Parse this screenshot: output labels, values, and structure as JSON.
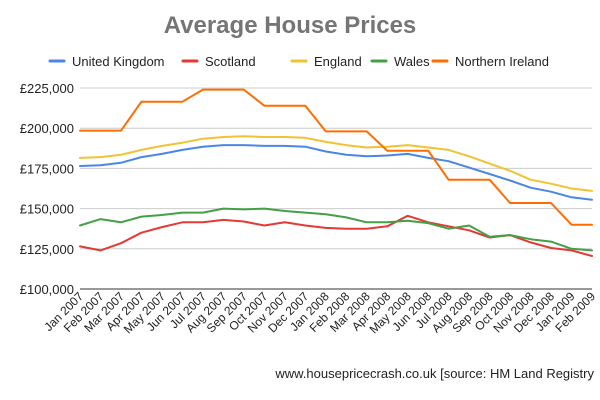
{
  "chart_data": {
    "type": "line",
    "title": "Average House Prices",
    "xlabel": "",
    "ylabel": "",
    "categories": [
      "Jan 2007",
      "Feb 2007",
      "Mar 2007",
      "Apr 2007",
      "May 2007",
      "Jun 2007",
      "Jul 2007",
      "Aug 2007",
      "Sep 2007",
      "Oct 2007",
      "Nov 2007",
      "Dec 2007",
      "Jan 2008",
      "Feb 2008",
      "Mar 2008",
      "Apr 2008",
      "May 2008",
      "Jun 2008",
      "Jul 2008",
      "Aug 2008",
      "Sep 2008",
      "Oct 2008",
      "Nov 2008",
      "Dec 2008",
      "Jan 2009",
      "Feb 2009"
    ],
    "ylim": [
      100000,
      225000
    ],
    "yticks": [
      100000,
      125000,
      150000,
      175000,
      200000,
      225000
    ],
    "ytick_labels": [
      "£100,000",
      "£125,000",
      "£150,000",
      "£175,000",
      "£200,000",
      "£225,000"
    ],
    "grid": true,
    "legend_position": "top",
    "series": [
      {
        "name": "United Kingdom",
        "color": "#4a86e8",
        "values": [
          176500,
          177000,
          178500,
          182000,
          184000,
          186500,
          188500,
          189500,
          189500,
          189000,
          189000,
          188500,
          185500,
          183500,
          182500,
          183000,
          184000,
          181500,
          179500,
          175500,
          171500,
          167500,
          163000,
          160500,
          157000,
          155500
        ]
      },
      {
        "name": "Scotland",
        "color": "#e53935",
        "values": [
          126500,
          124000,
          128500,
          135000,
          138500,
          141500,
          141500,
          143000,
          142000,
          139500,
          141500,
          139500,
          138000,
          137500,
          137500,
          139000,
          145500,
          141500,
          139000,
          136500,
          132000,
          133500,
          129000,
          125500,
          124000,
          120500
        ]
      },
      {
        "name": "England",
        "color": "#f1c232",
        "values": [
          181500,
          182000,
          183500,
          186500,
          189000,
          191000,
          193500,
          194500,
          195000,
          194500,
          194500,
          194000,
          191500,
          189500,
          188000,
          188500,
          189500,
          188000,
          186500,
          182500,
          178000,
          173500,
          168000,
          165500,
          162500,
          161000
        ]
      },
      {
        "name": "Wales",
        "color": "#43a047",
        "values": [
          139500,
          143500,
          141500,
          145000,
          146000,
          147500,
          147500,
          150000,
          149500,
          150000,
          148500,
          147500,
          146500,
          144500,
          141500,
          141500,
          142500,
          141000,
          137500,
          139500,
          132500,
          133500,
          131000,
          129500,
          125000,
          124000
        ]
      },
      {
        "name": "Northern Ireland",
        "color": "#ff6d01",
        "values": [
          198500,
          198500,
          198500,
          216500,
          216500,
          216500,
          224000,
          224000,
          224000,
          214000,
          214000,
          214000,
          198000,
          198000,
          198000,
          186000,
          186000,
          186000,
          168000,
          168000,
          168000,
          153500,
          153500,
          153500,
          140000,
          140000
        ]
      }
    ],
    "source": "www.housepricecrash.co.uk [source: HM Land Registry"
  }
}
